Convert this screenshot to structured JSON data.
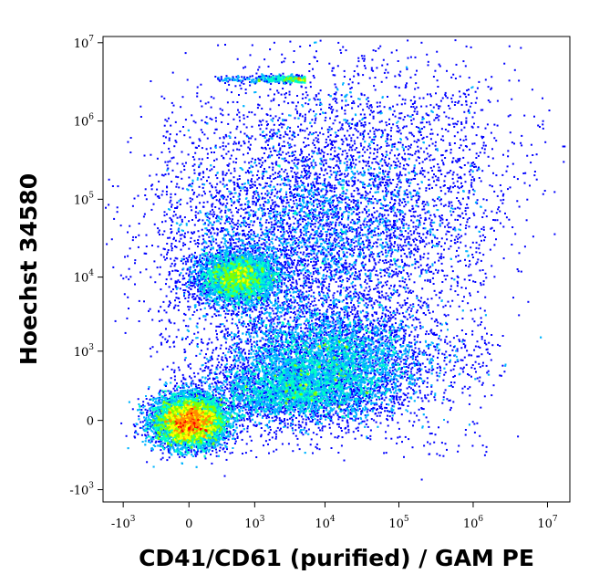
{
  "chart_data": {
    "type": "scatter",
    "title": "",
    "xlabel": "CD41/CD61 (purified) / GAM PE",
    "ylabel": "Hoechst 34580",
    "x_scale": "biexponential",
    "y_scale": "biexponential",
    "xlim": [
      -2000,
      20000000
    ],
    "ylim": [
      -1500,
      12000000
    ],
    "x_ticks": [
      {
        "base": "-10",
        "exp": "3",
        "value": -1000
      },
      {
        "base": "0",
        "exp": "",
        "value": 0
      },
      {
        "base": "10",
        "exp": "3",
        "value": 1000
      },
      {
        "base": "10",
        "exp": "4",
        "value": 10000
      },
      {
        "base": "10",
        "exp": "5",
        "value": 100000
      },
      {
        "base": "10",
        "exp": "6",
        "value": 1000000
      },
      {
        "base": "10",
        "exp": "7",
        "value": 10000000
      }
    ],
    "y_ticks": [
      {
        "base": "-10",
        "exp": "3",
        "value": -1000
      },
      {
        "base": "0",
        "exp": "",
        "value": 0
      },
      {
        "base": "10",
        "exp": "3",
        "value": 1000
      },
      {
        "base": "10",
        "exp": "4",
        "value": 10000
      },
      {
        "base": "10",
        "exp": "5",
        "value": 100000
      },
      {
        "base": "10",
        "exp": "6",
        "value": 1000000
      },
      {
        "base": "10",
        "exp": "7",
        "value": 10000000
      }
    ],
    "colormap": [
      "#0000ff",
      "#00b4ff",
      "#00ffc8",
      "#7fff00",
      "#ffff00",
      "#ff8c00",
      "#ff0000"
    ],
    "populations": [
      {
        "x_center": 0,
        "y_center": 0,
        "density": "highest"
      },
      {
        "x_center": 500,
        "y_center": 10000,
        "density": "high"
      },
      {
        "x_center": 10000,
        "y_center": 700,
        "density": "medium"
      },
      {
        "x_center": 5000,
        "y_center": 30000,
        "density": "low"
      }
    ],
    "grid": false,
    "legend": "none"
  }
}
